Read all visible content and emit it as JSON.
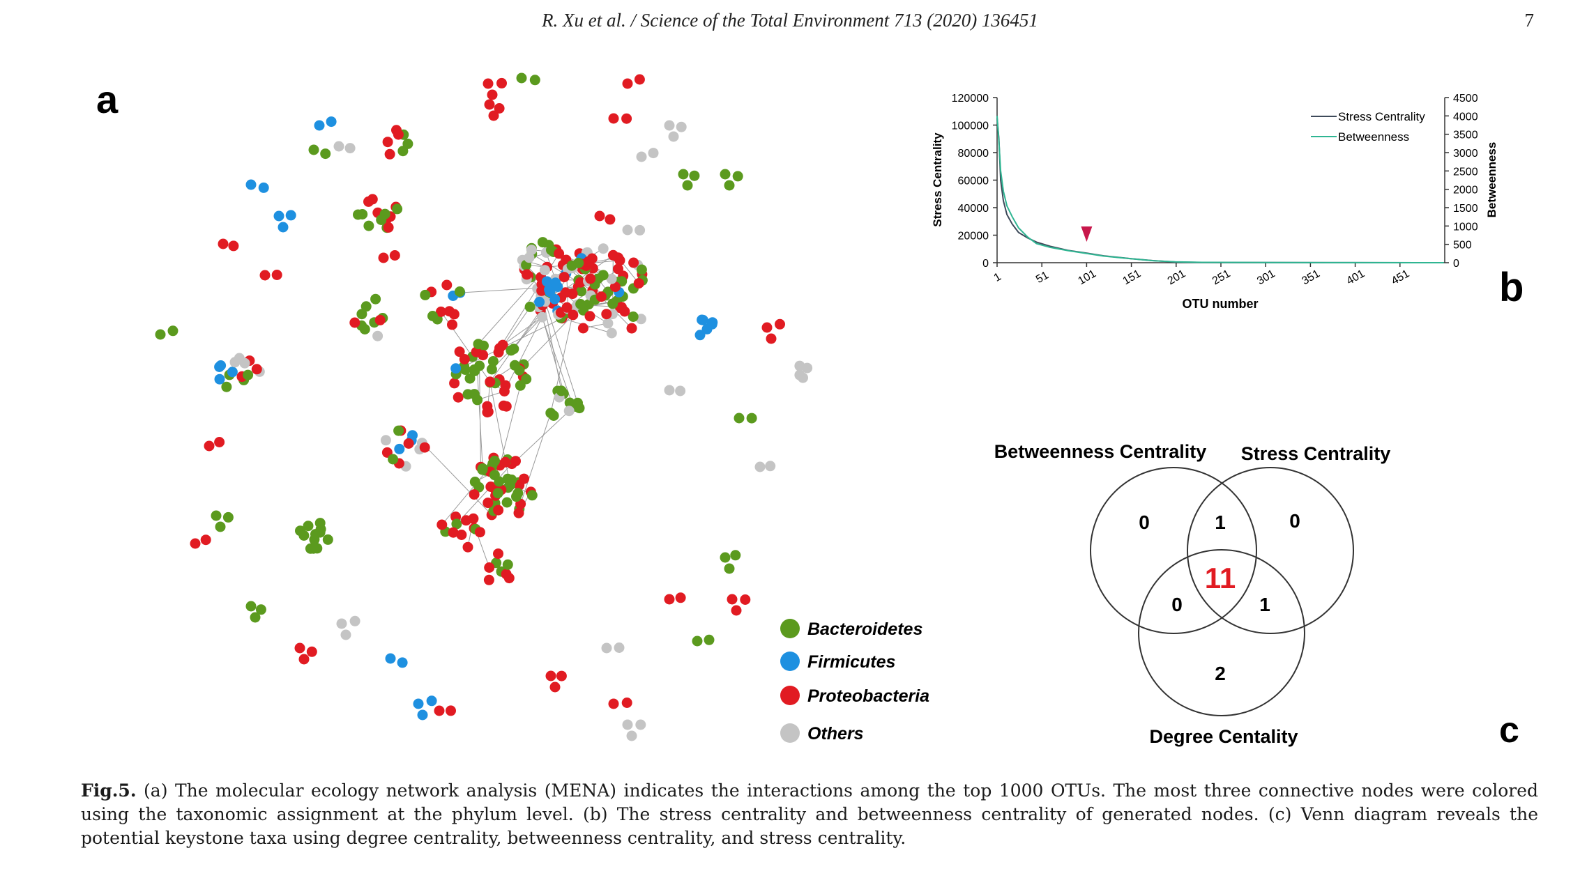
{
  "header": {
    "running_head": "R. Xu et al. / Science of the Total Environment 713 (2020) 136451",
    "page_number": "7"
  },
  "panels": {
    "a_label": "a",
    "b_label": "b",
    "c_label": "c"
  },
  "colors": {
    "bacteroidetes": "#5b9a1e",
    "firmicutes": "#1e90e0",
    "proteobacteria": "#e11b22",
    "others": "#c4c4c4",
    "stress_line": "#3e4a5a",
    "betweenness_line": "#2fb592",
    "marker": "#c8174b"
  },
  "legend": [
    {
      "label": "Bacteroidetes",
      "color": "#5b9a1e"
    },
    {
      "label": "Firmicutes",
      "color": "#1e90e0"
    },
    {
      "label": "Proteobacteria",
      "color": "#e11b22"
    },
    {
      "label": "Others",
      "color": "#c4c4c4"
    }
  ],
  "chart_data": {
    "type": "line",
    "xlabel": "OTU number",
    "ylabel": "Stress Centrality",
    "y2label": "Betweenness",
    "xlim": [
      1,
      501
    ],
    "ylim": [
      0,
      120000
    ],
    "y2lim": [
      0,
      4500
    ],
    "x_ticks": [
      "1",
      "51",
      "101",
      "151",
      "201",
      "251",
      "301",
      "351",
      "401",
      "451"
    ],
    "y_ticks": [
      "0",
      "20000",
      "40000",
      "60000",
      "80000",
      "100000",
      "120000"
    ],
    "y2_ticks": [
      "0",
      "500",
      "1000",
      "1500",
      "2000",
      "2500",
      "3000",
      "3500",
      "4000",
      "4500"
    ],
    "marker_x": 101,
    "series": [
      {
        "name": "Stress Centrality",
        "axis": "left",
        "x": [
          1,
          3,
          5,
          8,
          12,
          18,
          25,
          35,
          45,
          60,
          80,
          101,
          120,
          150,
          175,
          200,
          230,
          300,
          400,
          500
        ],
        "y": [
          105000,
          90000,
          60000,
          45000,
          35000,
          28000,
          22000,
          18000,
          15000,
          12000,
          9000,
          7000,
          5000,
          3000,
          1500,
          500,
          200,
          100,
          50,
          0
        ]
      },
      {
        "name": "Betweenness",
        "axis": "right",
        "x": [
          1,
          3,
          5,
          8,
          12,
          18,
          25,
          35,
          45,
          60,
          80,
          101,
          120,
          150,
          175,
          200,
          230,
          300,
          400,
          500
        ],
        "y": [
          4000,
          3300,
          2500,
          1950,
          1550,
          1250,
          950,
          700,
          520,
          420,
          330,
          250,
          180,
          110,
          55,
          25,
          10,
          5,
          2,
          0
        ]
      }
    ]
  },
  "venn": {
    "sets": [
      "Betweenness Centrality",
      "Stress Centrality",
      "Degree Centality"
    ],
    "regions": {
      "betweenness_only": "0",
      "stress_only": "0",
      "degree_only": "2",
      "betweenness_stress": "1",
      "betweenness_degree": "0",
      "stress_degree": "1",
      "all_three": "11"
    }
  },
  "caption": {
    "label": "Fig.5.",
    "text": " (a) The molecular ecology network analysis (MENA) indicates the interactions among the top 1000 OTUs. The most three connective nodes were colored using the taxonomic assignment at the phylum level. (b) The stress centrality and betweenness centrality of generated nodes. (c) Venn diagram reveals the potential keystone taxa using degree centrality, betweenness centrality, and stress centrality."
  }
}
